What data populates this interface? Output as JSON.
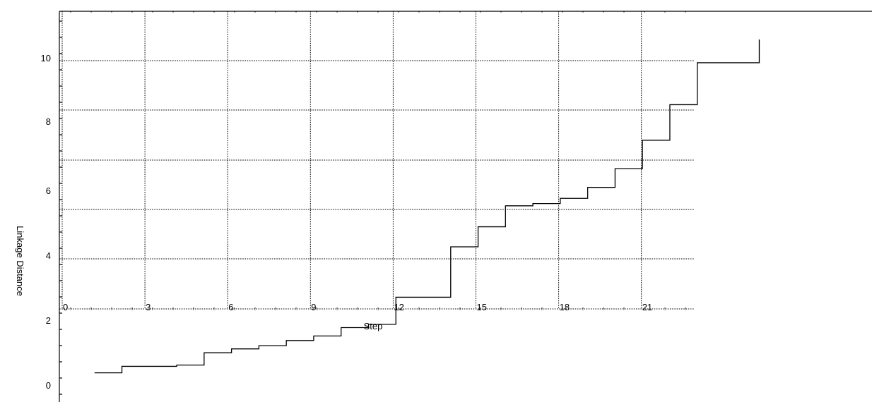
{
  "chart_data": {
    "type": "line",
    "title": "",
    "xlabel": "Step",
    "ylabel": "Linkage Distance",
    "x_ticks": [
      "0",
      "3",
      "6",
      "9",
      "12",
      "15",
      "18",
      "21"
    ],
    "y_ticks": [
      "0",
      "2",
      "4",
      "6",
      "8",
      "10"
    ],
    "grid": true,
    "series": [
      {
        "style": "step",
        "x": [
          1,
          2,
          3,
          4,
          5,
          6,
          7,
          8,
          9,
          10,
          11,
          12,
          13,
          14,
          15,
          16,
          17,
          18,
          19,
          20,
          21,
          22,
          23,
          24
        ],
        "y": [
          0.38,
          0.58,
          0.58,
          0.62,
          1.0,
          1.12,
          1.22,
          1.38,
          1.52,
          1.78,
          1.88,
          2.72,
          2.72,
          4.28,
          4.9,
          5.55,
          5.62,
          5.78,
          6.12,
          6.7,
          7.58,
          8.68,
          9.98,
          9.98
        ]
      }
    ]
  }
}
